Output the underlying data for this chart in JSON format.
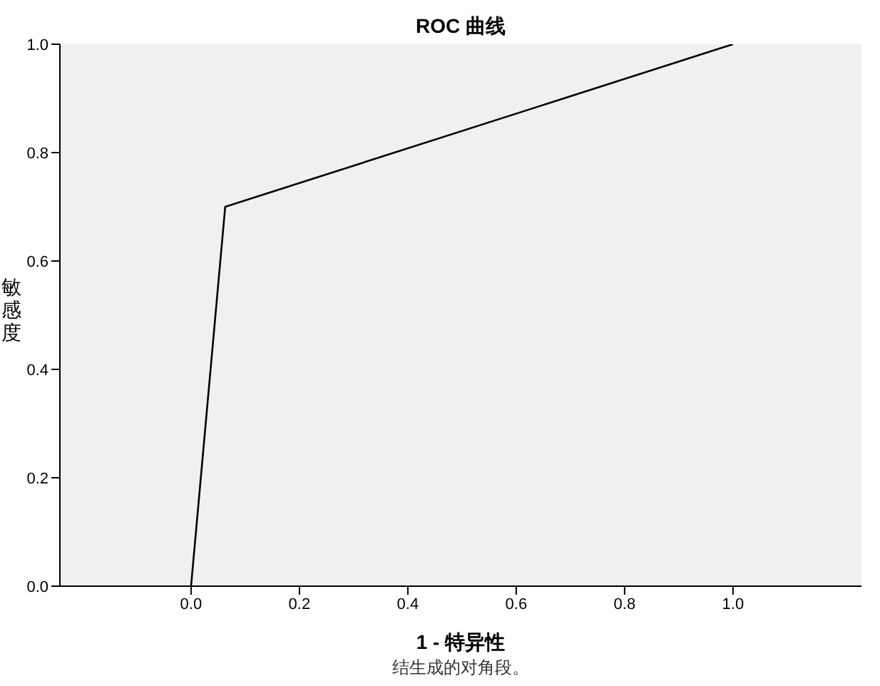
{
  "chart_data": {
    "type": "line",
    "title": "ROC 曲线",
    "xlabel": "1 - 特异性",
    "ylabel": "敏感度",
    "annotations": [
      "结生成的对角段。"
    ],
    "x": [
      0,
      0.063,
      1
    ],
    "series": [
      {
        "color": "#000000",
        "values": [
          0,
          0.7,
          1
        ]
      }
    ],
    "xlim": [
      -0.242,
      1.237
    ],
    "xticks": [
      {
        "value": 0,
        "label": "0.0"
      },
      0.2,
      0.4,
      0.6,
      0.8,
      {
        "value": 1,
        "label": "1.0"
      }
    ],
    "ylim": [
      0,
      1
    ],
    "yticks": [
      {
        "value": 0,
        "label": "0.0"
      },
      0.2,
      0.4,
      0.6,
      0.8,
      {
        "value": 1,
        "label": "1.0"
      }
    ],
    "grid": false,
    "legend": false,
    "marker": "none",
    "line_style": "solid"
  }
}
